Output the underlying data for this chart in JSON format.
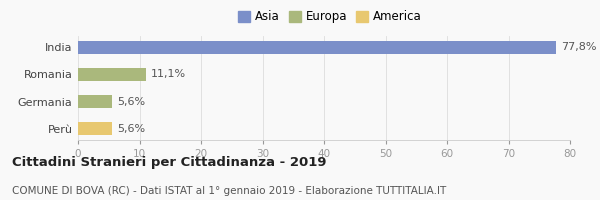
{
  "categories": [
    "India",
    "Romania",
    "Germania",
    "Perù"
  ],
  "values": [
    77.8,
    11.1,
    5.6,
    5.6
  ],
  "bar_colors": [
    "#7b8fc9",
    "#aab87c",
    "#aab87c",
    "#e8c870"
  ],
  "labels": [
    "77,8%",
    "11,1%",
    "5,6%",
    "5,6%"
  ],
  "legend": [
    {
      "label": "Asia",
      "color": "#7b8fc9"
    },
    {
      "label": "Europa",
      "color": "#aab87c"
    },
    {
      "label": "America",
      "color": "#e8c870"
    }
  ],
  "xlim": [
    0,
    80
  ],
  "xticks": [
    0,
    10,
    20,
    30,
    40,
    50,
    60,
    70,
    80
  ],
  "title": "Cittadini Stranieri per Cittadinanza - 2019",
  "subtitle": "COMUNE DI BOVA (RC) - Dati ISTAT al 1° gennaio 2019 - Elaborazione TUTTITALIA.IT",
  "background_color": "#f9f9f9",
  "bar_height": 0.5,
  "title_fontsize": 9.5,
  "subtitle_fontsize": 7.5,
  "label_fontsize": 8,
  "tick_fontsize": 7.5,
  "ytick_fontsize": 8,
  "legend_fontsize": 8.5
}
